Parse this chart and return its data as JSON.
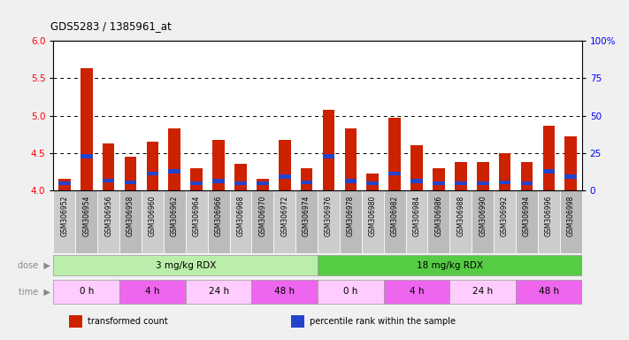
{
  "title": "GDS5283 / 1385961_at",
  "samples": [
    "GSM306952",
    "GSM306954",
    "GSM306956",
    "GSM306958",
    "GSM306960",
    "GSM306962",
    "GSM306964",
    "GSM306966",
    "GSM306968",
    "GSM306970",
    "GSM306972",
    "GSM306974",
    "GSM306976",
    "GSM306978",
    "GSM306980",
    "GSM306982",
    "GSM306984",
    "GSM306986",
    "GSM306988",
    "GSM306990",
    "GSM306992",
    "GSM306994",
    "GSM306996",
    "GSM306998"
  ],
  "red_values": [
    4.15,
    5.63,
    4.63,
    4.45,
    4.65,
    4.83,
    4.3,
    4.67,
    4.35,
    4.15,
    4.67,
    4.3,
    5.08,
    4.83,
    4.22,
    4.97,
    4.6,
    4.3,
    4.38,
    4.38,
    4.5,
    4.38,
    4.87,
    4.72
  ],
  "blue_bottom": [
    4.07,
    4.43,
    4.11,
    4.08,
    4.2,
    4.23,
    4.07,
    4.1,
    4.07,
    4.07,
    4.16,
    4.08,
    4.43,
    4.1,
    4.07,
    4.2,
    4.1,
    4.07,
    4.07,
    4.07,
    4.08,
    4.07,
    4.23,
    4.16
  ],
  "y_min": 4.0,
  "y_max": 6.0,
  "y_ticks_left": [
    4.0,
    4.5,
    5.0,
    5.5,
    6.0
  ],
  "y_ticks_right": [
    0,
    25,
    50,
    75,
    100
  ],
  "bar_color": "#cc2200",
  "blue_color": "#2244cc",
  "fig_bg": "#f0f0f0",
  "plot_bg": "#ffffff",
  "xlabel_bg": "#cccccc",
  "dose_groups": [
    {
      "label": "3 mg/kg RDX",
      "start": 0,
      "end": 12,
      "color": "#bbeeaa"
    },
    {
      "label": "18 mg/kg RDX",
      "start": 12,
      "end": 24,
      "color": "#55cc44"
    }
  ],
  "time_groups": [
    {
      "label": "0 h",
      "start": 0,
      "end": 3,
      "color": "#ffccff"
    },
    {
      "label": "4 h",
      "start": 3,
      "end": 6,
      "color": "#ee66ee"
    },
    {
      "label": "24 h",
      "start": 6,
      "end": 9,
      "color": "#ffccff"
    },
    {
      "label": "48 h",
      "start": 9,
      "end": 12,
      "color": "#ee66ee"
    },
    {
      "label": "0 h",
      "start": 12,
      "end": 15,
      "color": "#ffccff"
    },
    {
      "label": "4 h",
      "start": 15,
      "end": 18,
      "color": "#ee66ee"
    },
    {
      "label": "24 h",
      "start": 18,
      "end": 21,
      "color": "#ffccff"
    },
    {
      "label": "48 h",
      "start": 21,
      "end": 24,
      "color": "#ee66ee"
    }
  ],
  "legend_items": [
    {
      "label": "transformed count",
      "color": "#cc2200"
    },
    {
      "label": "percentile rank within the sample",
      "color": "#2244cc"
    }
  ]
}
